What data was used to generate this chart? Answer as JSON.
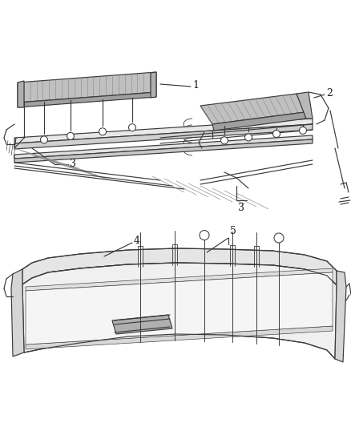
{
  "background_color": "#ffffff",
  "line_color": "#3a3a3a",
  "label_color": "#1a1a1a",
  "fig_width": 4.38,
  "fig_height": 5.33,
  "dpi": 100,
  "lw_main": 0.85,
  "lw_thin": 0.45,
  "lw_label": 0.55,
  "strip1_label": "1",
  "strip2_label": "2",
  "bracket_label": "3",
  "board_label": "4",
  "bolt_label": "5"
}
